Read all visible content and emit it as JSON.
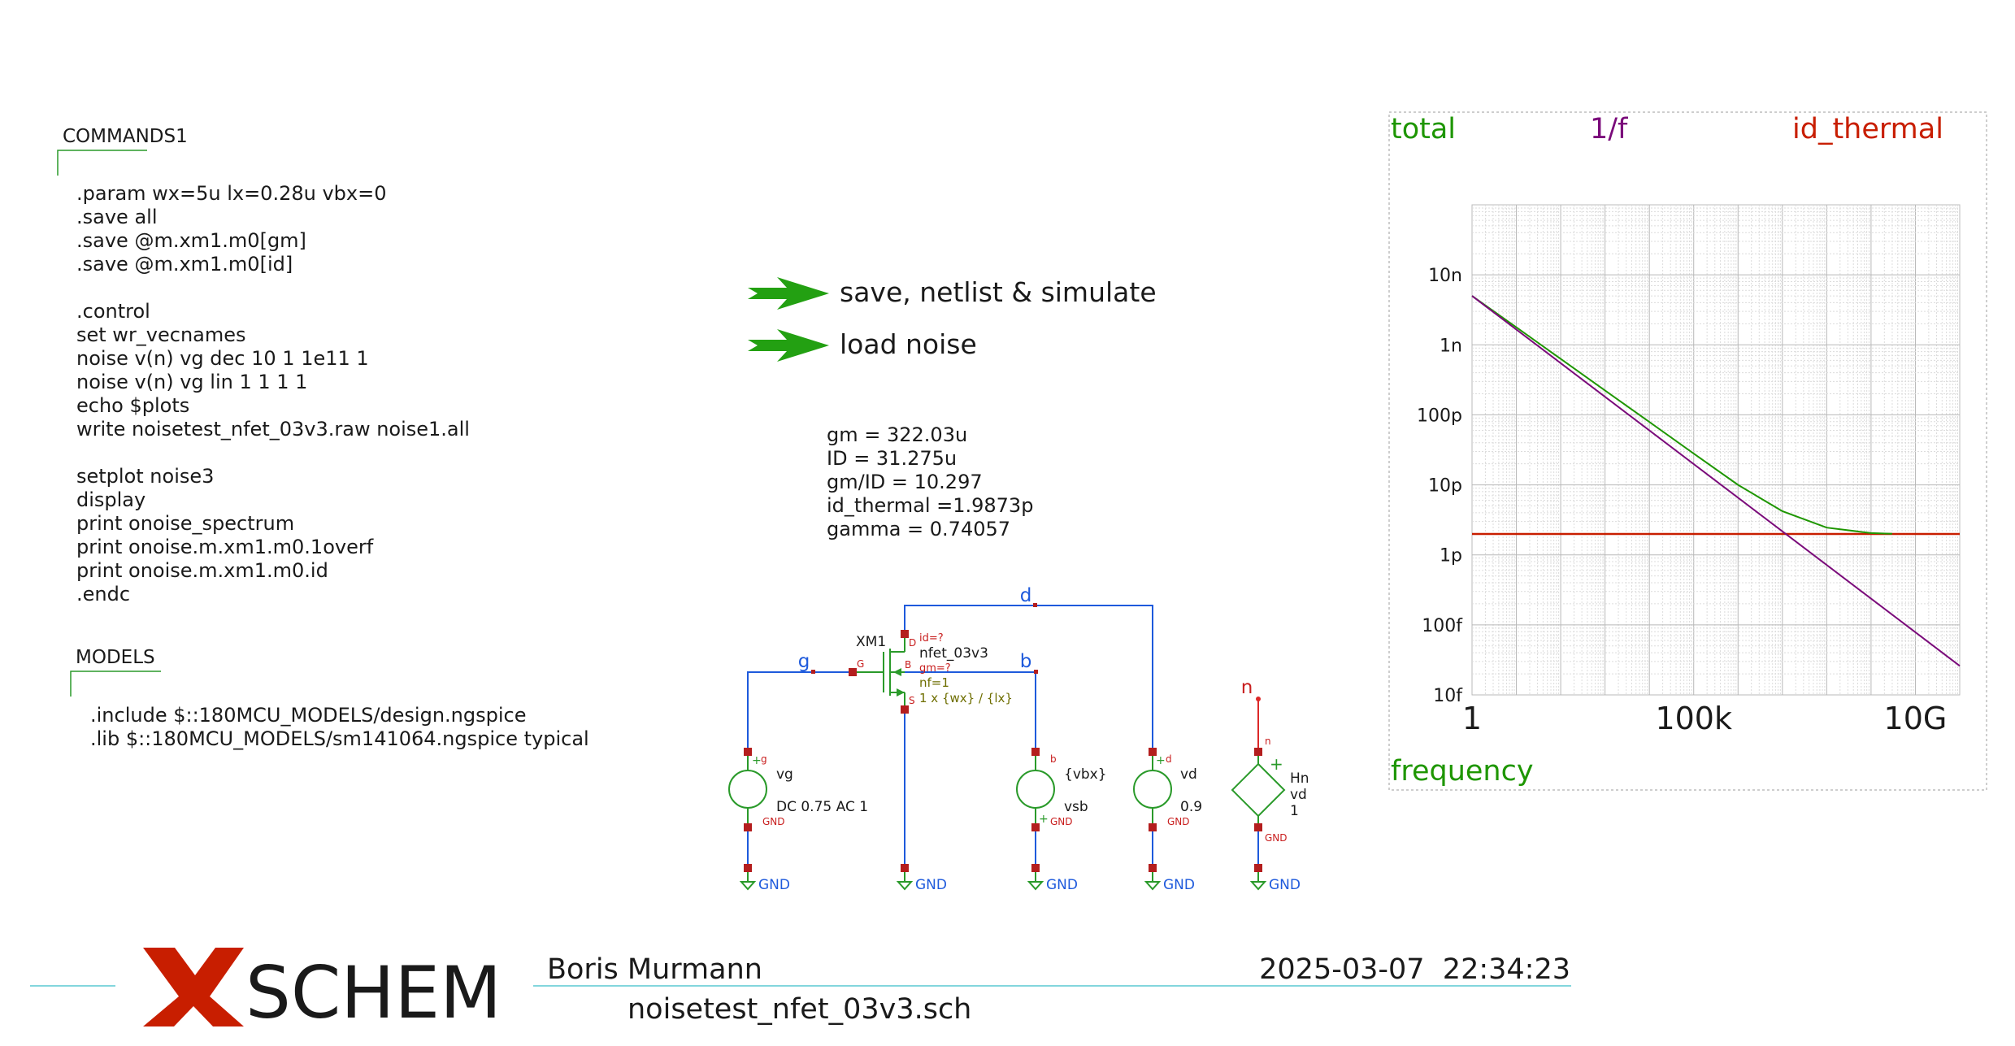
{
  "commands": {
    "title": "COMMANDS1",
    "lines": [
      ".param wx=5u lx=0.28u vbx=0",
      ".save all",
      ".save @m.xm1.m0[gm]",
      ".save @m.xm1.m0[id]",
      "",
      ".control",
      "set wr_vecnames",
      "noise v(n) vg dec 10 1 1e11 1",
      "noise v(n) vg lin  1 1 1 1",
      "echo $plots",
      "write noisetest_nfet_03v3.raw noise1.all",
      "",
      "setplot noise3",
      "display",
      "print onoise_spectrum",
      "print onoise.m.xm1.m0.1overf",
      "print onoise.m.xm1.m0.id",
      ".endc"
    ]
  },
  "models": {
    "title": "MODELS",
    "lines": [
      ".include $::180MCU_MODELS/design.ngspice",
      ".lib $::180MCU_MODELS/sm141064.ngspice typical"
    ]
  },
  "launchers": [
    {
      "label": "save, netlist & simulate"
    },
    {
      "label": "load noise"
    }
  ],
  "results": [
    "gm = 322.03u",
    "ID = 31.275u",
    "gm/ID = 10.297",
    "id_thermal =1.9873p",
    "gamma = 0.74057"
  ],
  "schematic": {
    "transistor": {
      "instance": "XM1",
      "model": "nfet_03v3",
      "p1": "id=?",
      "p2": "gm=?",
      "p3": "nf=1",
      "p4": "1 x {wx} / {lx}",
      "pin_d": "D",
      "pin_g": "G",
      "pin_s": "S",
      "pin_b": "B"
    },
    "nets": {
      "g": "g",
      "d": "d",
      "b": "b",
      "n": "n"
    },
    "vg": {
      "name": "vg",
      "value": "DC 0.75 AC 1",
      "pin_p": "g",
      "pin_m": "GND"
    },
    "vsb": {
      "name": "vsb",
      "value": "{vbx}",
      "pin_p": "b",
      "pin_m": "GND"
    },
    "vd": {
      "name": "vd",
      "value": "0.9",
      "pin_p": "d",
      "pin_m": "GND"
    },
    "hn": {
      "name": "Hn",
      "ctrl": "vd",
      "gain": "1",
      "pin_p": "n",
      "pin_m": "GND"
    },
    "gnd_label": "GND"
  },
  "chart_data": {
    "type": "line",
    "xlabel": "frequency",
    "x_scale": "log",
    "y_scale": "log",
    "xlim": [
      1,
      100000000000
    ],
    "ylim": [
      1e-14,
      1e-07
    ],
    "x_ticks": [
      {
        "value": 1,
        "label": "1"
      },
      {
        "value": 100000,
        "label": "100k"
      },
      {
        "value": 10000000000,
        "label": "10G"
      }
    ],
    "y_ticks": [
      {
        "value": 1e-14,
        "label": "10f"
      },
      {
        "value": 1e-13,
        "label": "100f"
      },
      {
        "value": 1e-12,
        "label": "1p"
      },
      {
        "value": 1e-11,
        "label": "10p"
      },
      {
        "value": 1e-10,
        "label": "100p"
      },
      {
        "value": 1e-09,
        "label": "1n"
      },
      {
        "value": 1e-08,
        "label": "10n"
      }
    ],
    "grid": true,
    "legend_placement": "top",
    "series": [
      {
        "name": "total",
        "color": "#1e9600",
        "x": [
          1,
          10,
          100,
          1000,
          10000,
          100000,
          1000000,
          10000000,
          100000000,
          1000000000,
          3000000000
        ],
        "y": [
          5e-09,
          1.78e-09,
          6.3e-10,
          2.23e-10,
          7.9e-11,
          2.8e-11,
          1e-11,
          4.2e-12,
          2.45e-12,
          2.05e-12,
          2e-12
        ]
      },
      {
        "name": "1/f",
        "color": "#7a0a7a",
        "x": [
          1,
          100000000000
        ],
        "y": [
          5e-09,
          2.6e-14
        ]
      },
      {
        "name": "id_thermal",
        "color": "#c81e00",
        "x": [
          1,
          100000000000
        ],
        "y": [
          1.9873e-12,
          1.9873e-12
        ]
      }
    ]
  },
  "footer": {
    "logo_text": "SCHEM",
    "author": "Boris Murmann",
    "datetime": "2025-03-07  22:34:23",
    "filename": "noisetest_nfet_03v3.sch"
  }
}
